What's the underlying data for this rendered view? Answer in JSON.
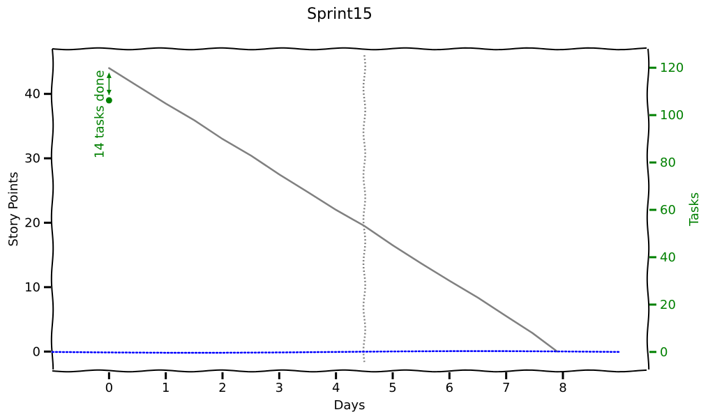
{
  "chart_data": {
    "type": "line",
    "title": "Sprint15",
    "xlabel": "Days",
    "ylabel": "Story Points",
    "y2label": "Tasks",
    "xlim": [
      -1,
      9.5
    ],
    "ylim": [
      -3,
      47
    ],
    "y2lim": [
      -8,
      128
    ],
    "x_ticks": [
      0,
      1,
      2,
      3,
      4,
      5,
      6,
      7,
      8
    ],
    "y_ticks": [
      0,
      10,
      20,
      30,
      40
    ],
    "y2_ticks": [
      0,
      20,
      40,
      60,
      80,
      100,
      120
    ],
    "grid": false,
    "style": "xkcd-hand-drawn",
    "series": [
      {
        "axis": "left",
        "color": "#808080",
        "line_style": "solid",
        "x": [
          0,
          1,
          2,
          3,
          4,
          4.5,
          5,
          6,
          7,
          7.9
        ],
        "values": [
          44,
          38.5,
          33,
          27.5,
          22,
          19.5,
          16.5,
          11,
          5.5,
          0
        ]
      },
      {
        "axis": "right",
        "color": "#0000ff",
        "line_style": "dotted",
        "x": [
          -1,
          9
        ],
        "values": [
          0,
          0
        ]
      }
    ],
    "reference_lines": [
      {
        "orientation": "vertical",
        "x": 4.5,
        "color": "#808080",
        "line_style": "dotted"
      }
    ],
    "annotations": [
      {
        "text": "14 tasks done",
        "x": 0,
        "y": 39,
        "color": "#008000",
        "rotation": -90
      }
    ],
    "colors": {
      "left_axis": "#000000",
      "right_axis": "#008000"
    }
  }
}
